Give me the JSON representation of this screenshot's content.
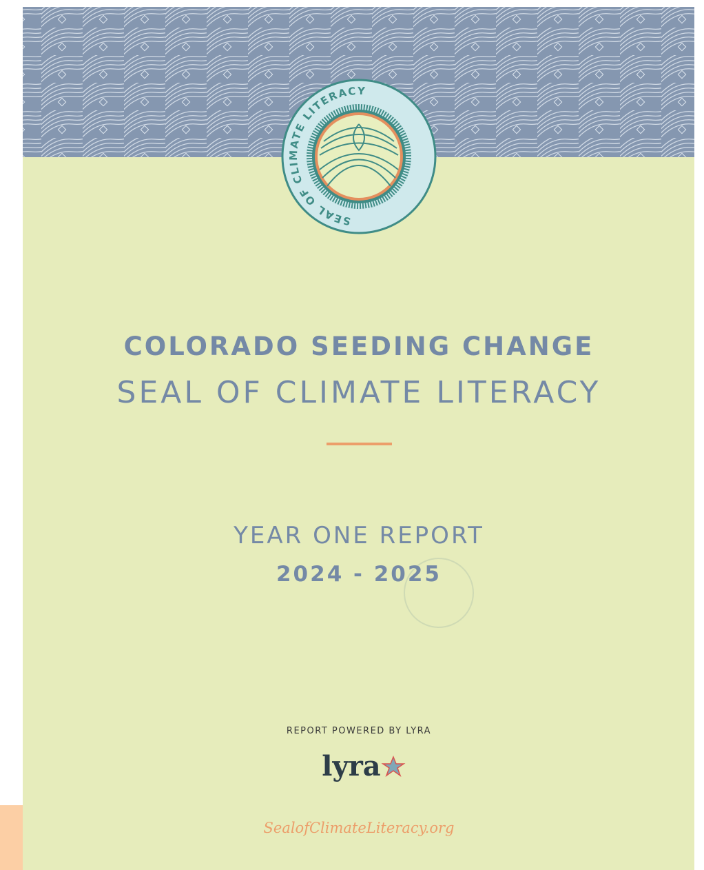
{
  "seal": {
    "ring_text": "SEAL OF CLIMATE LITERACY"
  },
  "title": {
    "line1": "COLORADO SEEDING CHANGE",
    "line2": "SEAL OF CLIMATE LITERACY"
  },
  "report": {
    "name": "YEAR ONE REPORT",
    "years": "2024 - 2025"
  },
  "footer": {
    "powered_by": "REPORT POWERED BY LYRA",
    "logo": "lyra",
    "url": "SealofClimateLiteracy.org"
  }
}
